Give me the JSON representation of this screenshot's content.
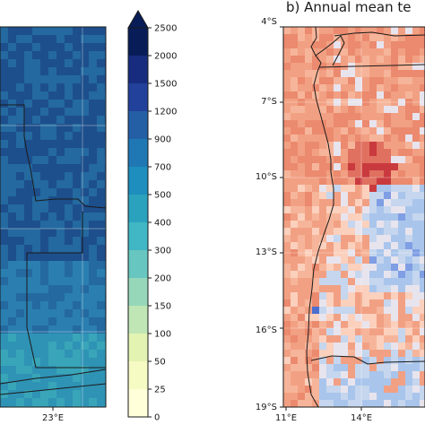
{
  "left_panel": {
    "x_ticks": [
      "23°E"
    ],
    "colors": [
      "#1d4f8c",
      "#24699f",
      "#2a7fb0",
      "#2f93b5",
      "#39a5b8"
    ]
  },
  "colorbar": {
    "labels": [
      "2500",
      "2000",
      "1500",
      "1200",
      "900",
      "700",
      "500",
      "400",
      "300",
      "200",
      "150",
      "100",
      "50",
      "25",
      "0"
    ],
    "colors": [
      "#081d58",
      "#172c7e",
      "#22419b",
      "#245fa6",
      "#1f78b4",
      "#1d8ebd",
      "#2aa2be",
      "#41b6c4",
      "#67c6bf",
      "#96d7b9",
      "#c0e6b5",
      "#e2f3b2",
      "#f6fbc4",
      "#ffffd9"
    ]
  },
  "right_panel": {
    "title": "b) Annual mean te",
    "y_ticks": [
      "4°S",
      "7°S",
      "10°S",
      "13°S",
      "16°S",
      "19°S"
    ],
    "x_ticks": [
      "11°E",
      "14°E"
    ],
    "colors": [
      "#f6b59a",
      "#f2a083",
      "#eb8a6e",
      "#e07060",
      "#c93a3e",
      "#fbd0bd",
      "#e8e4ee",
      "#c5d6ee",
      "#a9c5ec",
      "#7f9ee4",
      "#4a6fcf"
    ]
  }
}
